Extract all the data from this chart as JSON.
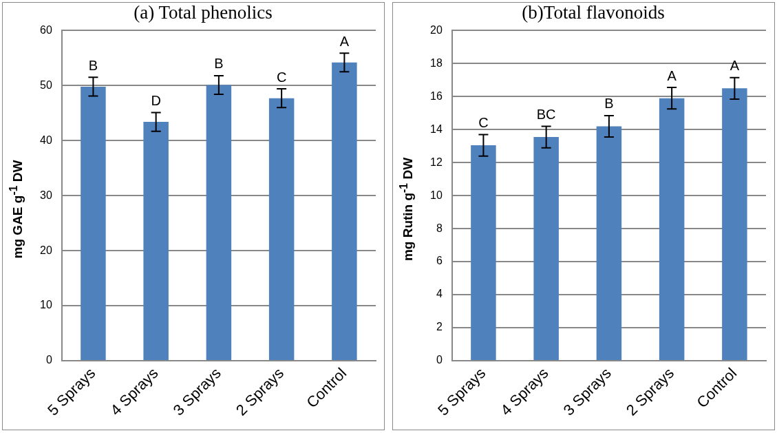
{
  "chart_data": [
    {
      "type": "bar",
      "title": "(a) Total phenolics",
      "ylabel": "mg GAE g$^{-1}$ DW",
      "categories": [
        "5 Sprays",
        "4 Sprays",
        "3 Sprays",
        "2 Sprays",
        "Control"
      ],
      "values": [
        49.8,
        43.4,
        50.1,
        47.7,
        54.2
      ],
      "errors": [
        1.7,
        1.7,
        1.7,
        1.7,
        1.7
      ],
      "color": "#4f81bd",
      "ylim": [
        0,
        60
      ],
      "yticks": [
        0,
        10,
        20,
        30,
        40,
        50,
        60
      ],
      "grid": "y",
      "value_labels": [
        "B",
        "D",
        "B",
        "C",
        "A"
      ]
    },
    {
      "type": "bar",
      "title": "(b)Total flavonoids",
      "ylabel": "mg Rutin g$^{-1}$ DW",
      "categories": [
        "5 Sprays",
        "4 Sprays",
        "3 Sprays",
        "2 Sprays",
        "Control"
      ],
      "values": [
        13.05,
        13.55,
        14.2,
        15.9,
        16.5
      ],
      "errors": [
        0.65,
        0.65,
        0.65,
        0.65,
        0.65
      ],
      "color": "#4f81bd",
      "ylim": [
        0,
        20
      ],
      "yticks": [
        0,
        2,
        4,
        6,
        8,
        10,
        12,
        14,
        16,
        18,
        20
      ],
      "grid": "y",
      "value_labels": [
        "C",
        "BC",
        "B",
        "A",
        "A"
      ]
    }
  ]
}
